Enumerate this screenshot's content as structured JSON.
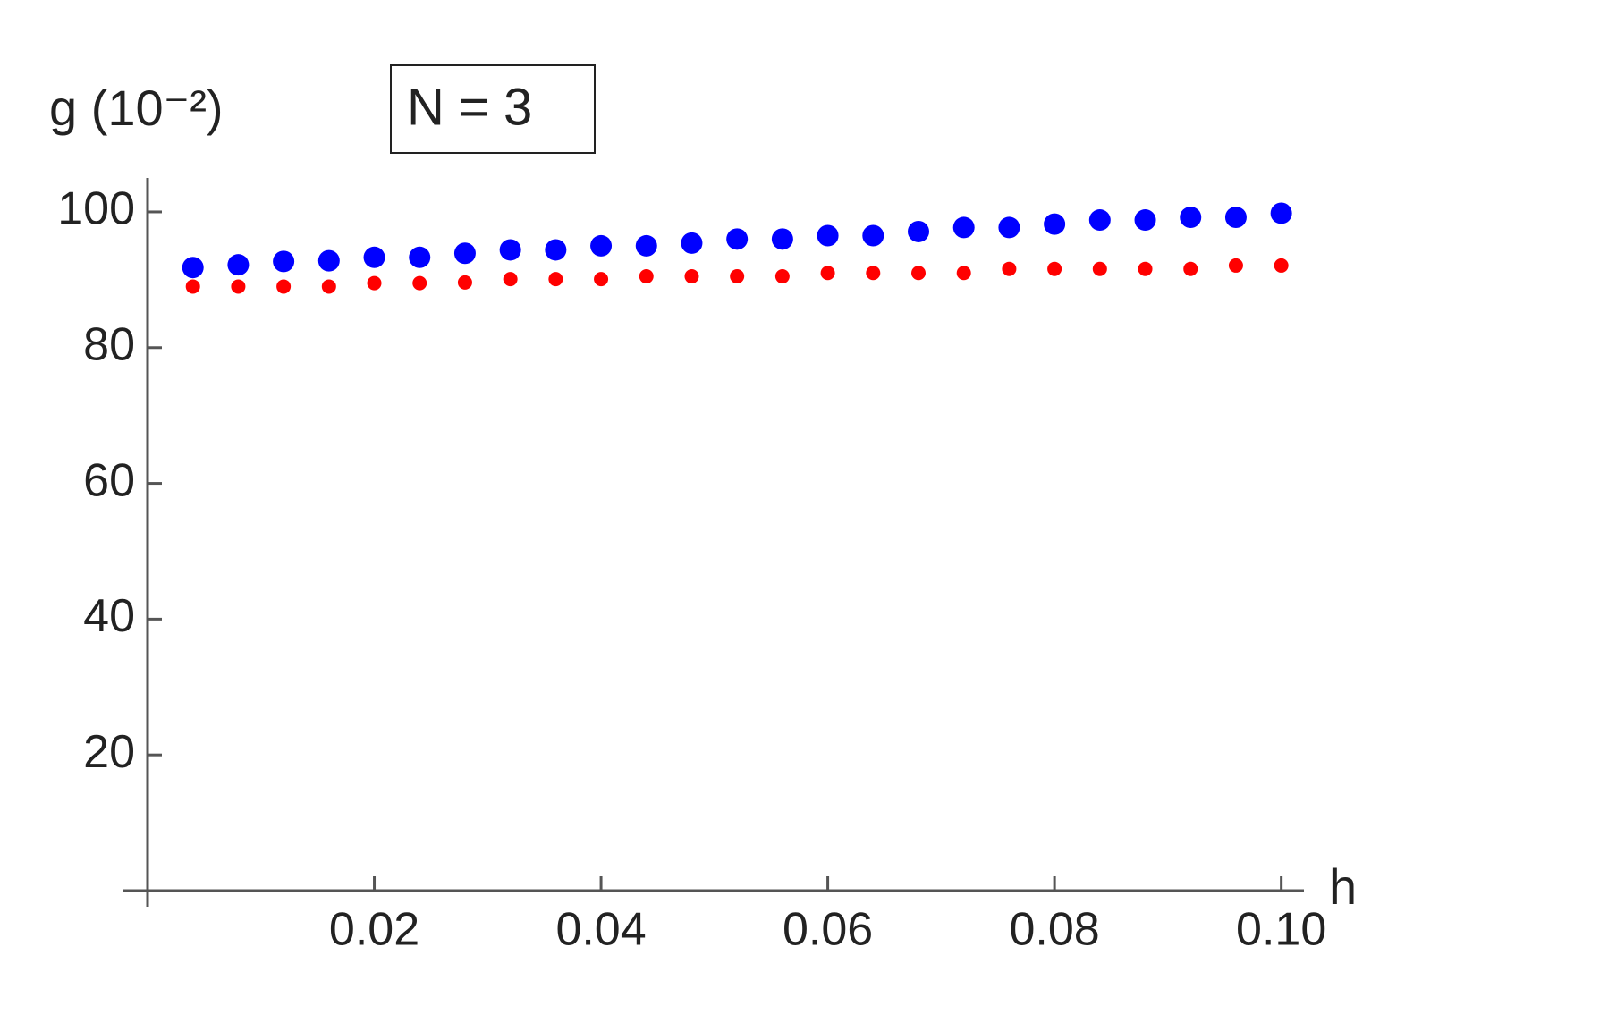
{
  "chart_data": {
    "type": "scatter",
    "ylabel": "g (10⁻²)",
    "xlabel": "h",
    "annotation": "N = 3",
    "xlim": [
      0,
      0.102
    ],
    "ylim": [
      0,
      105
    ],
    "xticks": [
      0.02,
      0.04,
      0.06,
      0.08,
      {
        "value": 0.1,
        "label": "0.10"
      }
    ],
    "yticks": [
      20,
      40,
      60,
      80,
      100
    ],
    "x": [
      0.004,
      0.008,
      0.012,
      0.016,
      0.02,
      0.024,
      0.028,
      0.032,
      0.036,
      0.04,
      0.044,
      0.048,
      0.052,
      0.056,
      0.06,
      0.064,
      0.068,
      0.072,
      0.076,
      0.08,
      0.084,
      0.088,
      0.092,
      0.096,
      0.1
    ],
    "series": [
      {
        "color": "#0000ff",
        "values": [
          91.8,
          92.2,
          92.7,
          92.8,
          93.3,
          93.3,
          93.9,
          94.4,
          94.4,
          95.0,
          95.0,
          95.4,
          96.0,
          96.0,
          96.5,
          96.5,
          97.1,
          97.7,
          97.7,
          98.2,
          98.8,
          98.8,
          99.2,
          99.2,
          99.8
        ]
      },
      {
        "color": "#ff0000",
        "values": [
          89.0,
          89.0,
          89.0,
          89.0,
          89.5,
          89.5,
          89.6,
          90.1,
          90.1,
          90.1,
          90.5,
          90.5,
          90.5,
          90.5,
          91.0,
          91.0,
          91.0,
          91.0,
          91.6,
          91.6,
          91.6,
          91.6,
          91.6,
          92.1,
          92.1
        ]
      }
    ]
  }
}
